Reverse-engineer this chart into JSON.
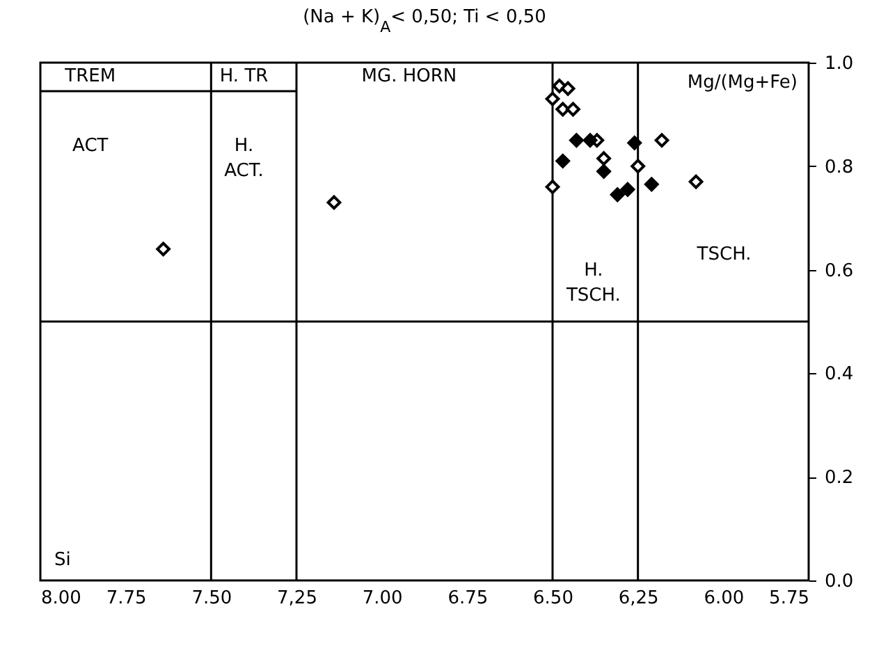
{
  "chart_data": {
    "type": "scatter",
    "title": "(Na + K)$_{A}$< 0,50;  Ti < 0,50",
    "xlabel": "Si",
    "ylabel": "Mg/(Mg+Fe)",
    "xlim": [
      8,
      5.75
    ],
    "xticks": [
      {
        "value": 8,
        "label": "8.00"
      },
      {
        "value": 7.75,
        "label": "7.75"
      },
      {
        "value": 7.5,
        "label": "7.50"
      },
      {
        "value": 7.25,
        "label": "7,25"
      },
      {
        "value": 7,
        "label": "7.00"
      },
      {
        "value": 6.75,
        "label": "6.75"
      },
      {
        "value": 6.5,
        "label": "6.50"
      },
      {
        "value": 6.25,
        "label": "6,25"
      },
      {
        "value": 6,
        "label": "6.00"
      },
      {
        "value": 5.75,
        "label": "5.75"
      }
    ],
    "ylim": [
      0,
      1
    ],
    "yticks": [
      {
        "value": 0,
        "label": "0.0"
      },
      {
        "value": 0.2,
        "label": "0.2"
      },
      {
        "value": 0.4,
        "label": "0.4"
      },
      {
        "value": 0.6,
        "label": "0.6"
      },
      {
        "value": 0.8,
        "label": "0.8"
      },
      {
        "value": 1,
        "label": "1.0"
      }
    ],
    "grid": false,
    "marker": "diamond",
    "series": [
      {
        "color": "#ffffff",
        "x": [
          7.64,
          7.14,
          6.48,
          6.455,
          6.5,
          6.47,
          6.44,
          6.37,
          6.35,
          6.5,
          6.25,
          6.18,
          6.08
        ],
        "values": [
          0.64,
          0.73,
          0.955,
          0.95,
          0.93,
          0.91,
          0.91,
          0.85,
          0.815,
          0.76,
          0.8,
          0.85,
          0.77
        ]
      },
      {
        "color": "#000000",
        "x": [
          6.43,
          6.39,
          6.47,
          6.35,
          6.31,
          6.28,
          6.26,
          6.21
        ],
        "values": [
          0.85,
          0.85,
          0.81,
          0.79,
          0.745,
          0.755,
          0.845,
          0.765
        ]
      },
      {
        "type": "line",
        "marker": "none",
        "color": "#000000",
        "x": [
          8,
          7.25
        ],
        "values": [
          0.945,
          0.945
        ]
      }
    ],
    "ref_lines": [
      {
        "axis": "x",
        "value": 7.5
      },
      {
        "axis": "x",
        "value": 7.25
      },
      {
        "axis": "x",
        "value": 6.5
      },
      {
        "axis": "x",
        "value": 6.25
      },
      {
        "axis": "y",
        "value": 0.5
      }
    ],
    "annotations": [
      "TREM",
      "H. TR",
      "MG. HORN",
      "ACT",
      "H.\nACT.",
      "H.\nTSCH.",
      "TSCH."
    ]
  }
}
